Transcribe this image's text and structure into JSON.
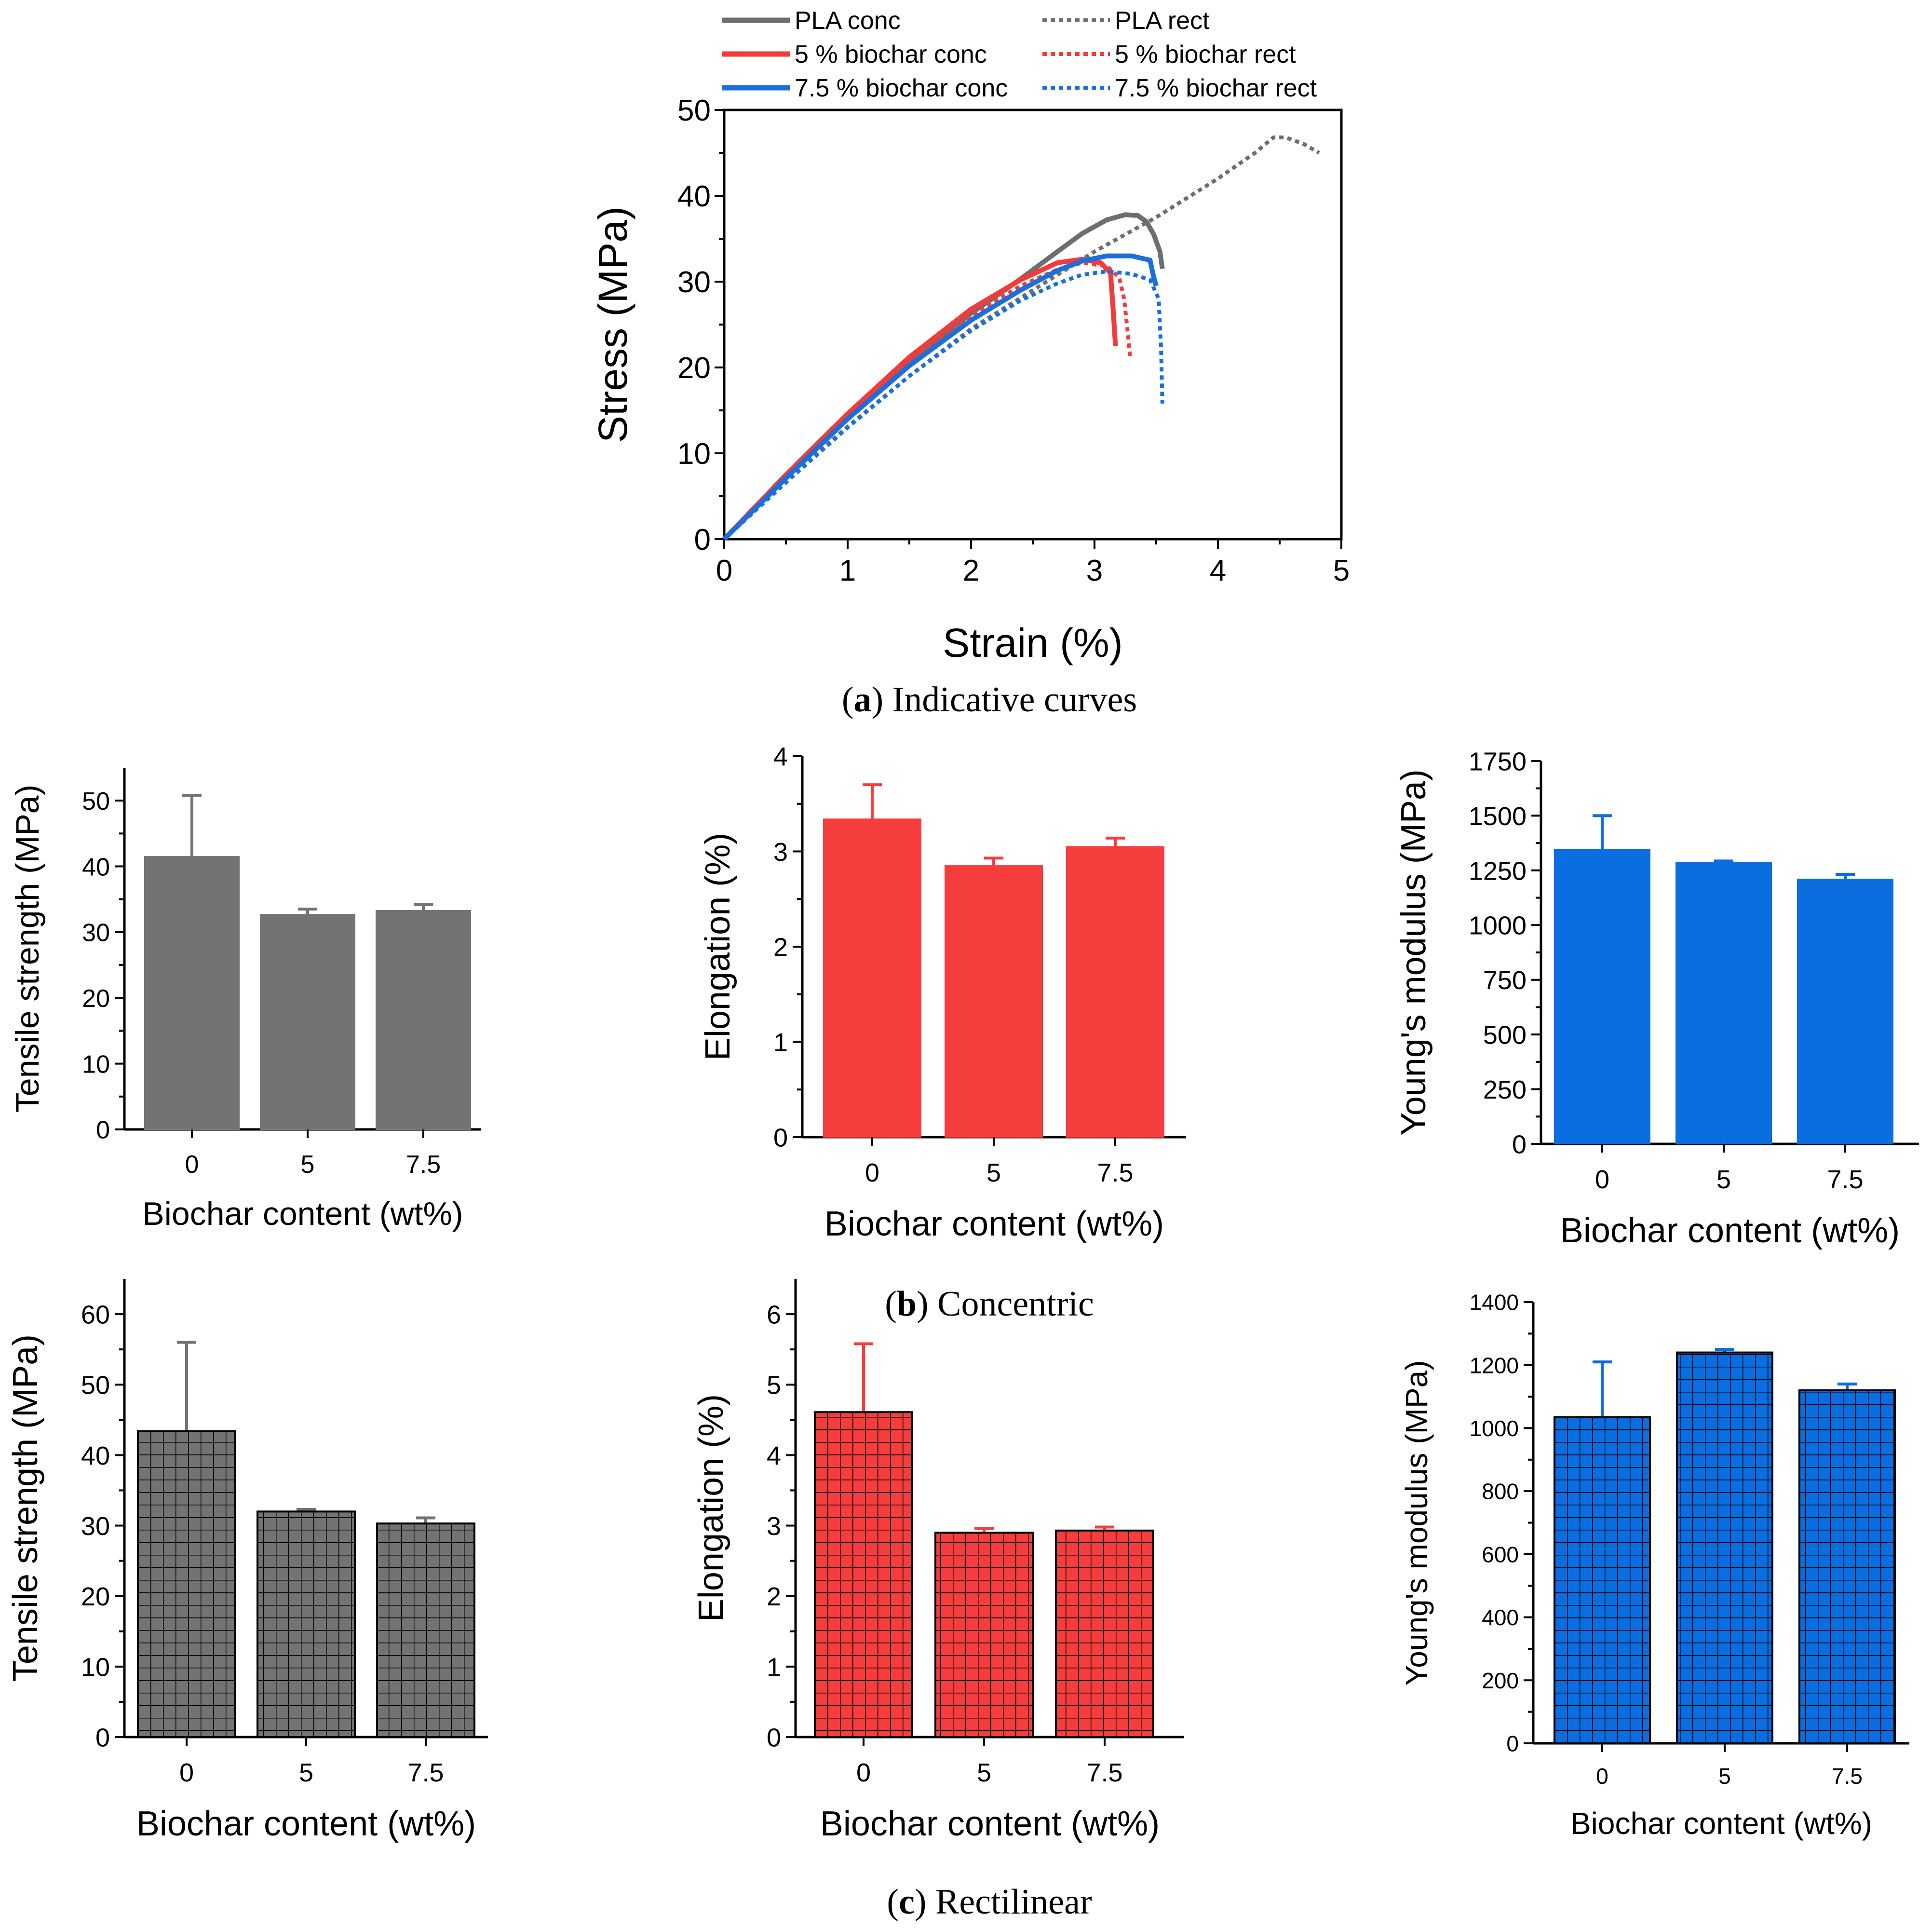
{
  "colors": {
    "pla": "#6e6e6e",
    "biochar5": "#f23b3b",
    "biochar75": "#1a6fdc",
    "bar_gray": "#737373",
    "bar_red": "#f53d3d",
    "bar_blue": "#0a6de0",
    "grid_line": "#000000"
  },
  "captions": {
    "a": {
      "letter": "a",
      "text": " Indicative curves"
    },
    "b": {
      "letter": "b",
      "text": " Concentric"
    },
    "c": {
      "letter": "c",
      "text": " Rectilinear"
    }
  },
  "chart_data": [
    {
      "id": "a",
      "type": "line",
      "title": "",
      "xlabel": "Strain (%)",
      "ylabel": "Stress (MPa)",
      "xlim": [
        0,
        5
      ],
      "ylim": [
        0,
        50
      ],
      "xticks": [
        "0",
        "1",
        "2",
        "3",
        "4",
        "5"
      ],
      "yticks": [
        "0",
        "10",
        "20",
        "30",
        "40",
        "50"
      ],
      "legend_placement": "top",
      "series": [
        {
          "name": "PLA conc",
          "style": "solid",
          "color_key": "pla",
          "x": [
            0,
            0.5,
            1.0,
            1.5,
            2.0,
            2.4,
            2.7,
            2.9,
            3.1,
            3.25,
            3.35,
            3.42,
            3.48,
            3.53,
            3.55
          ],
          "y": [
            0,
            7.2,
            14.0,
            20.5,
            26.3,
            30.3,
            33.5,
            35.6,
            37.2,
            37.8,
            37.7,
            37.0,
            35.5,
            33.5,
            31.5
          ]
        },
        {
          "name": "PLA rect",
          "style": "dotted",
          "color_key": "pla",
          "x": [
            0,
            0.5,
            1.0,
            1.5,
            2.0,
            2.5,
            3.0,
            3.5,
            4.0,
            4.3,
            4.45,
            4.55,
            4.7,
            4.82
          ],
          "y": [
            0,
            6.8,
            13.1,
            19.0,
            24.5,
            29.0,
            33.5,
            37.5,
            42.0,
            45.0,
            46.8,
            46.8,
            46.0,
            45.0
          ]
        },
        {
          "name": "5 % biochar conc",
          "style": "solid",
          "color_key": "biochar5",
          "x": [
            0,
            0.5,
            1.0,
            1.5,
            2.0,
            2.4,
            2.7,
            2.9,
            3.05,
            3.13,
            3.15,
            3.17
          ],
          "y": [
            0,
            7.5,
            14.6,
            21.2,
            26.8,
            30.2,
            32.2,
            32.6,
            32.2,
            31.0,
            27.0,
            22.5
          ]
        },
        {
          "name": "5 % biochar rect",
          "style": "dotted",
          "color_key": "biochar5",
          "x": [
            0,
            0.5,
            1.0,
            1.5,
            2.0,
            2.4,
            2.7,
            2.9,
            3.1,
            3.2,
            3.24,
            3.27,
            3.29
          ],
          "y": [
            0,
            7.2,
            14.2,
            20.6,
            26.0,
            29.5,
            31.4,
            32.2,
            31.8,
            30.5,
            28.0,
            24.0,
            21.0
          ]
        },
        {
          "name": "7.5 % biochar conc",
          "style": "solid",
          "color_key": "biochar75",
          "x": [
            0,
            0.5,
            1.0,
            1.5,
            2.0,
            2.4,
            2.7,
            2.9,
            3.1,
            3.3,
            3.45,
            3.48,
            3.5
          ],
          "y": [
            0,
            7.1,
            14.0,
            20.2,
            25.5,
            29.0,
            31.3,
            32.4,
            33.0,
            33.0,
            32.5,
            30.5,
            29.5
          ]
        },
        {
          "name": "7.5 % biochar rect",
          "style": "dotted",
          "color_key": "biochar75",
          "x": [
            0,
            0.5,
            1.0,
            1.5,
            2.0,
            2.4,
            2.7,
            2.9,
            3.1,
            3.3,
            3.45,
            3.52,
            3.54,
            3.55
          ],
          "y": [
            0,
            6.6,
            13.0,
            19.0,
            24.3,
            27.8,
            29.8,
            30.8,
            31.2,
            30.9,
            30.2,
            28.0,
            22.0,
            15.8
          ]
        }
      ]
    },
    {
      "id": "b1",
      "type": "bar",
      "pattern": "solid",
      "color_key": "bar_gray",
      "categories": [
        "0",
        "5",
        "7.5"
      ],
      "values": [
        41.5,
        32.7,
        33.3
      ],
      "errors": [
        9.3,
        0.8,
        0.9
      ],
      "xlabel": "Biochar content (wt%)",
      "ylabel": "Tensile strength (MPa)",
      "ylim": [
        0,
        55
      ],
      "yticks": [
        "0",
        "10",
        "20",
        "30",
        "40",
        "50"
      ]
    },
    {
      "id": "b2",
      "type": "bar",
      "pattern": "solid",
      "color_key": "bar_red",
      "categories": [
        "0",
        "5",
        "7.5"
      ],
      "values": [
        3.34,
        2.85,
        3.05
      ],
      "errors": [
        0.36,
        0.08,
        0.09
      ],
      "xlabel": "Biochar content (wt%)",
      "ylabel": "Elongation (%)",
      "ylim": [
        0,
        4
      ],
      "yticks": [
        "0",
        "1",
        "2",
        "3",
        "4"
      ]
    },
    {
      "id": "b3",
      "type": "bar",
      "pattern": "solid",
      "color_key": "bar_blue",
      "categories": [
        "0",
        "5",
        "7.5"
      ],
      "values": [
        1345,
        1285,
        1210
      ],
      "errors": [
        155,
        8,
        22
      ],
      "xlabel": "Biochar content (wt%)",
      "ylabel": "Young's modulus (MPa)",
      "ylim": [
        0,
        1750
      ],
      "yticks": [
        "0",
        "250",
        "500",
        "750",
        "1000",
        "1250",
        "1500",
        "1750"
      ]
    },
    {
      "id": "c1",
      "type": "bar",
      "pattern": "grid",
      "color_key": "bar_gray",
      "categories": [
        "0",
        "5",
        "7.5"
      ],
      "values": [
        43.4,
        32.0,
        30.3
      ],
      "errors": [
        12.6,
        0.3,
        0.8
      ],
      "xlabel": "Biochar content (wt%)",
      "ylabel": "Tensile strength (MPa)",
      "ylim": [
        0,
        65
      ],
      "yticks": [
        "0",
        "10",
        "20",
        "30",
        "40",
        "50",
        "60"
      ]
    },
    {
      "id": "c2",
      "type": "bar",
      "pattern": "grid",
      "color_key": "bar_red",
      "categories": [
        "0",
        "5",
        "7.5"
      ],
      "values": [
        4.61,
        2.9,
        2.93
      ],
      "errors": [
        0.97,
        0.06,
        0.05
      ],
      "xlabel": "Biochar content (wt%)",
      "ylabel": "Elongation (%)",
      "ylim": [
        0,
        6.5
      ],
      "yticks": [
        "0",
        "1",
        "2",
        "3",
        "4",
        "5",
        "6"
      ]
    },
    {
      "id": "c3",
      "type": "bar",
      "pattern": "grid",
      "color_key": "bar_blue",
      "categories": [
        "0",
        "5",
        "7.5"
      ],
      "values": [
        1035,
        1240,
        1120
      ],
      "errors": [
        175,
        10,
        20
      ],
      "xlabel": "Biochar content (wt%)",
      "ylabel": "Young's modulus (MPa)",
      "ylim": [
        0,
        1400
      ],
      "yticks": [
        "0",
        "200",
        "400",
        "600",
        "800",
        "1000",
        "1200",
        "1400"
      ]
    }
  ]
}
